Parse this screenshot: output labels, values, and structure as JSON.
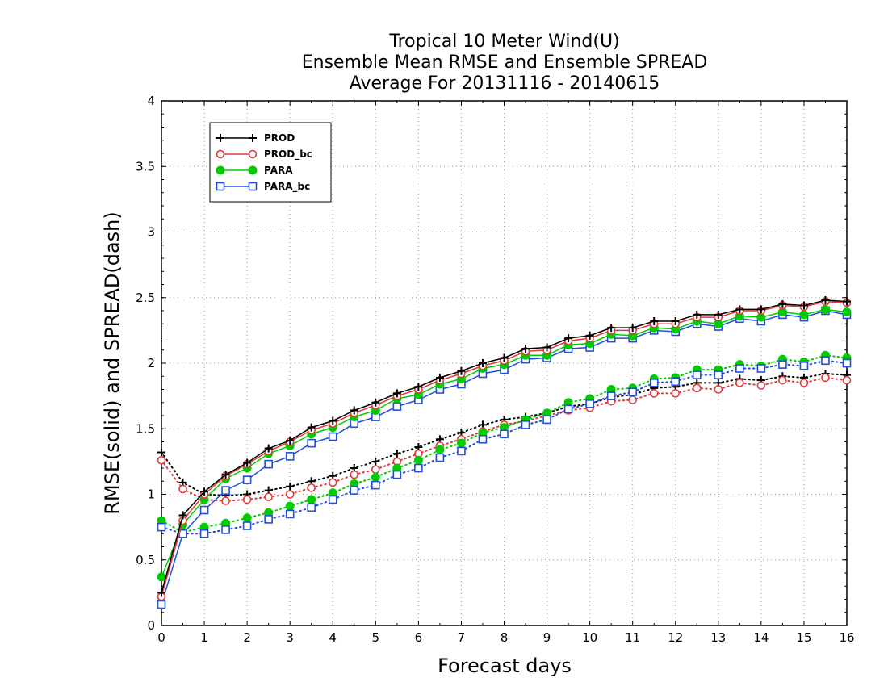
{
  "chart_data": {
    "type": "line",
    "title": [
      "Tropical 10 Meter Wind(U)",
      "Ensemble Mean RMSE and Ensemble SPREAD",
      "Average For 20131116 - 20140615"
    ],
    "xlabel": "Forecast days",
    "ylabel": "RMSE(solid) and SPREAD(dash)",
    "xlim": [
      0,
      16
    ],
    "ylim": [
      0,
      4
    ],
    "xticks": [
      "0",
      "1",
      "2",
      "3",
      "4",
      "5",
      "6",
      "7",
      "8",
      "9",
      "10",
      "11",
      "12",
      "13",
      "14",
      "15",
      "16"
    ],
    "yticks": [
      "0",
      "0.5",
      "1",
      "1.5",
      "2",
      "2.5",
      "3",
      "3.5",
      "4"
    ],
    "grid": true,
    "legend_position": "top-left",
    "x": [
      0,
      0.5,
      1,
      1.5,
      2,
      2.5,
      3,
      3.5,
      4,
      4.5,
      5,
      5.5,
      6,
      6.5,
      7,
      7.5,
      8,
      8.5,
      9,
      9.5,
      10,
      10.5,
      11,
      11.5,
      12,
      12.5,
      13,
      13.5,
      14,
      14.5,
      15,
      15.5,
      16
    ],
    "series": [
      {
        "name": "PROD",
        "metric": "RMSE",
        "style": "solid",
        "color": "#000000",
        "marker": "plus",
        "values": [
          0.25,
          0.84,
          1.02,
          1.15,
          1.24,
          1.35,
          1.41,
          1.51,
          1.56,
          1.64,
          1.7,
          1.77,
          1.82,
          1.89,
          1.94,
          2.0,
          2.04,
          2.11,
          2.12,
          2.19,
          2.21,
          2.27,
          2.27,
          2.32,
          2.32,
          2.37,
          2.37,
          2.41,
          2.41,
          2.45,
          2.44,
          2.48,
          2.47
        ]
      },
      {
        "name": "PROD_bc",
        "metric": "RMSE",
        "style": "solid",
        "color": "#e03a3a",
        "marker": "circle",
        "values": [
          0.22,
          0.8,
          1.0,
          1.14,
          1.23,
          1.33,
          1.4,
          1.49,
          1.54,
          1.62,
          1.68,
          1.75,
          1.8,
          1.87,
          1.92,
          1.98,
          2.02,
          2.09,
          2.1,
          2.17,
          2.19,
          2.25,
          2.25,
          2.3,
          2.3,
          2.35,
          2.35,
          2.4,
          2.4,
          2.44,
          2.43,
          2.47,
          2.46
        ]
      },
      {
        "name": "PARA",
        "metric": "RMSE",
        "style": "solid",
        "color": "#00cc00",
        "marker": "filled-circle",
        "values": [
          0.37,
          0.77,
          0.96,
          1.12,
          1.2,
          1.31,
          1.37,
          1.46,
          1.51,
          1.59,
          1.64,
          1.73,
          1.76,
          1.84,
          1.88,
          1.96,
          1.99,
          2.06,
          2.06,
          2.14,
          2.15,
          2.22,
          2.21,
          2.27,
          2.26,
          2.32,
          2.3,
          2.36,
          2.35,
          2.39,
          2.37,
          2.41,
          2.39
        ]
      },
      {
        "name": "PARA_bc",
        "metric": "RMSE",
        "style": "solid",
        "color": "#1f4fdc",
        "marker": "square",
        "values": [
          0.16,
          0.7,
          0.88,
          1.03,
          1.11,
          1.23,
          1.29,
          1.39,
          1.44,
          1.54,
          1.59,
          1.67,
          1.72,
          1.8,
          1.84,
          1.92,
          1.95,
          2.03,
          2.04,
          2.11,
          2.12,
          2.19,
          2.19,
          2.25,
          2.24,
          2.3,
          2.28,
          2.34,
          2.32,
          2.37,
          2.35,
          2.4,
          2.37
        ]
      },
      {
        "name": "PROD",
        "metric": "SPREAD",
        "style": "dotted",
        "color": "#000000",
        "marker": "plus",
        "values": [
          1.32,
          1.09,
          1.0,
          0.99,
          1.0,
          1.03,
          1.06,
          1.1,
          1.14,
          1.2,
          1.25,
          1.31,
          1.36,
          1.42,
          1.47,
          1.53,
          1.57,
          1.59,
          1.62,
          1.67,
          1.69,
          1.74,
          1.76,
          1.81,
          1.82,
          1.85,
          1.85,
          1.88,
          1.87,
          1.9,
          1.89,
          1.92,
          1.91
        ]
      },
      {
        "name": "PROD_bc",
        "metric": "SPREAD",
        "style": "dotted",
        "color": "#e03a3a",
        "marker": "circle",
        "values": [
          1.26,
          1.04,
          0.96,
          0.95,
          0.96,
          0.98,
          1.0,
          1.05,
          1.09,
          1.15,
          1.19,
          1.25,
          1.31,
          1.37,
          1.42,
          1.48,
          1.53,
          1.56,
          1.6,
          1.64,
          1.66,
          1.71,
          1.72,
          1.77,
          1.77,
          1.81,
          1.8,
          1.85,
          1.83,
          1.87,
          1.85,
          1.89,
          1.87
        ]
      },
      {
        "name": "PARA",
        "metric": "SPREAD",
        "style": "dotted",
        "color": "#00cc00",
        "marker": "filled-circle",
        "values": [
          0.8,
          0.71,
          0.75,
          0.78,
          0.82,
          0.86,
          0.91,
          0.96,
          1.01,
          1.08,
          1.13,
          1.2,
          1.26,
          1.34,
          1.39,
          1.47,
          1.51,
          1.57,
          1.62,
          1.7,
          1.73,
          1.8,
          1.81,
          1.88,
          1.89,
          1.95,
          1.95,
          1.99,
          1.98,
          2.03,
          2.01,
          2.06,
          2.04
        ]
      },
      {
        "name": "PARA_bc",
        "metric": "SPREAD",
        "style": "dotted",
        "color": "#1f4fdc",
        "marker": "square",
        "values": [
          0.75,
          0.7,
          0.7,
          0.73,
          0.76,
          0.81,
          0.85,
          0.9,
          0.96,
          1.03,
          1.07,
          1.15,
          1.2,
          1.28,
          1.33,
          1.42,
          1.46,
          1.53,
          1.57,
          1.65,
          1.69,
          1.75,
          1.78,
          1.85,
          1.86,
          1.91,
          1.91,
          1.96,
          1.96,
          1.99,
          1.98,
          2.02,
          2.0
        ]
      }
    ],
    "legend": [
      {
        "name": "PROD",
        "color": "#000000",
        "marker": "plus"
      },
      {
        "name": "PROD_bc",
        "color": "#e03a3a",
        "marker": "circle"
      },
      {
        "name": "PARA",
        "color": "#00cc00",
        "marker": "filled-circle"
      },
      {
        "name": "PARA_bc",
        "color": "#1f4fdc",
        "marker": "square"
      }
    ]
  }
}
